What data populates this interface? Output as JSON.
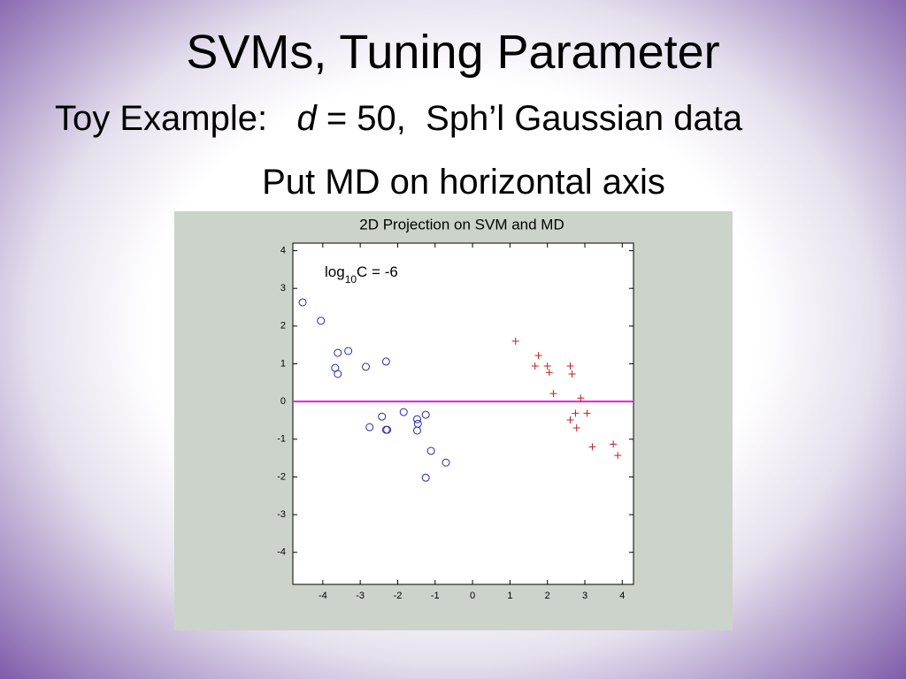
{
  "slide": {
    "title": "SVMs, Tuning Parameter",
    "subtitle": {
      "lead": "Toy Example:",
      "var": "d",
      "rest": "= 50,  Sph’l Gaussian data"
    },
    "note": "Put MD on horizontal axis"
  },
  "chart_data": {
    "type": "scatter",
    "title": "2D Projection on SVM and MD",
    "annotation": {
      "base": "log",
      "sub": "10",
      "rest": "C = -6"
    },
    "xlim": [
      -4.8,
      4.3
    ],
    "ylim": [
      -4.85,
      4.2
    ],
    "xticks": [
      -4,
      -3,
      -2,
      -1,
      0,
      1,
      2,
      3,
      4
    ],
    "yticks": [
      -4,
      -3,
      -2,
      -1,
      0,
      1,
      2,
      3,
      4
    ],
    "hline": {
      "value": 0,
      "color": "#e020e0"
    },
    "series": [
      {
        "color": "#2a2aa0",
        "marker": "circle",
        "x": [
          -4.54,
          -4.05,
          -3.6,
          -3.32,
          -3.67,
          -3.6,
          -2.85,
          -2.31,
          -2.75,
          -2.42,
          -2.31,
          -2.28,
          -1.84,
          -1.48,
          -1.46,
          -1.48,
          -1.25,
          -1.11,
          -1.25,
          -0.71
        ],
        "y": [
          2.63,
          2.14,
          1.29,
          1.34,
          0.89,
          0.73,
          0.92,
          1.06,
          -0.68,
          -0.4,
          -0.75,
          -0.75,
          -0.28,
          -0.47,
          -0.59,
          -0.77,
          -0.35,
          -1.31,
          -2.02,
          -1.62
        ]
      },
      {
        "color": "#c02020",
        "marker": "plus",
        "x": [
          1.15,
          1.76,
          1.67,
          2.0,
          2.05,
          2.61,
          2.66,
          2.16,
          2.89,
          3.06,
          2.75,
          2.61,
          2.78,
          3.2,
          3.76,
          3.88
        ],
        "y": [
          1.6,
          1.22,
          0.94,
          0.94,
          0.77,
          0.94,
          0.73,
          0.21,
          0.09,
          -0.31,
          -0.31,
          -0.49,
          -0.7,
          -1.2,
          -1.13,
          -1.43
        ]
      }
    ]
  }
}
